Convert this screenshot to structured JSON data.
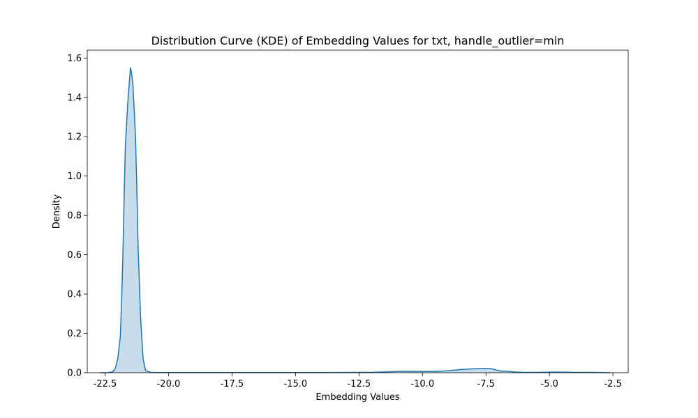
{
  "chart_data": {
    "type": "area",
    "title": "Distribution Curve (KDE) of Embedding Values for txt, handle_outlier=min",
    "xlabel": "Embedding Values",
    "ylabel": "Density",
    "xlim": [
      -23.2,
      -1.9
    ],
    "ylim": [
      0,
      1.64
    ],
    "xticks": [
      -22.5,
      -20.0,
      -17.5,
      -15.0,
      -12.5,
      -10.0,
      -7.5,
      -5.0,
      -2.5
    ],
    "xtick_labels": [
      "-22.5",
      "-20.0",
      "-17.5",
      "-15.0",
      "-12.5",
      "-10.0",
      "-7.5",
      "-5.0",
      "-2.5"
    ],
    "yticks": [
      0.0,
      0.2,
      0.4,
      0.6,
      0.8,
      1.0,
      1.2,
      1.4,
      1.6
    ],
    "ytick_labels": [
      "0.0",
      "0.2",
      "0.4",
      "0.6",
      "0.8",
      "1.0",
      "1.2",
      "1.4",
      "1.6"
    ],
    "grid": false,
    "series": [
      {
        "color": "#1f77b4",
        "fill_color": "#1f77b4",
        "fill_opacity": 0.25,
        "x": [
          -22.7,
          -22.4,
          -22.2,
          -22.1,
          -22.0,
          -21.9,
          -21.85,
          -21.8,
          -21.75,
          -21.7,
          -21.6,
          -21.5,
          -21.45,
          -21.4,
          -21.3,
          -21.25,
          -21.2,
          -21.1,
          -21.0,
          -20.9,
          -20.7,
          -20.3,
          -19.5,
          -17.0,
          -14.0,
          -12.0,
          -11.5,
          -11.0,
          -10.5,
          -10.0,
          -9.5,
          -9.0,
          -8.5,
          -8.0,
          -7.6,
          -7.3,
          -7.1,
          -6.9,
          -6.7,
          -6.4,
          -6.0,
          -5.5,
          -5.0,
          -4.5,
          -4.0,
          -3.5,
          -3.2,
          -2.9,
          -2.6
        ],
        "y": [
          0.0,
          0.0,
          0.005,
          0.02,
          0.07,
          0.18,
          0.35,
          0.58,
          0.88,
          1.15,
          1.38,
          1.55,
          1.52,
          1.46,
          1.2,
          0.95,
          0.65,
          0.28,
          0.07,
          0.01,
          0.002,
          0.001,
          0.001,
          0.001,
          0.001,
          0.002,
          0.004,
          0.006,
          0.007,
          0.006,
          0.006,
          0.01,
          0.016,
          0.02,
          0.022,
          0.021,
          0.014,
          0.008,
          0.008,
          0.004,
          0.002,
          0.002,
          0.003,
          0.003,
          0.002,
          0.002,
          0.002,
          0.001,
          0.0
        ]
      }
    ]
  }
}
